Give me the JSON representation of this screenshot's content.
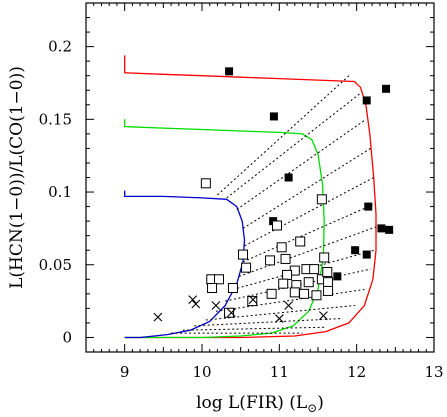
{
  "chart_data": {
    "type": "scatter",
    "xlabel": "log L(FIR) (L",
    "xlabel_sub": "⊙",
    "xlabel_close": ")",
    "ylabel": "L(HCN(1−0))/L(CO(1−0))",
    "xlim": [
      8.5,
      13
    ],
    "ylim": [
      -0.01,
      0.23
    ],
    "x_ticks": [
      9,
      10,
      11,
      12,
      13
    ],
    "x_tick_labels": [
      "9",
      "10",
      "11",
      "12",
      "13"
    ],
    "y_ticks": [
      0,
      0.05,
      0.1,
      0.15,
      0.2
    ],
    "y_tick_labels": [
      "0",
      "0.05",
      "0.1",
      "0.15",
      "0.2"
    ],
    "grid": false,
    "colors": {
      "red": "#ff0000",
      "green": "#00dd00",
      "blue": "#0000cc",
      "black": "#000000"
    },
    "curves": [
      {
        "color": "red",
        "points": [
          [
            9.0,
            0.194
          ],
          [
            9.0,
            0.182
          ],
          [
            9.5,
            0.181
          ],
          [
            10.0,
            0.18
          ],
          [
            10.5,
            0.179
          ],
          [
            11.0,
            0.178
          ],
          [
            11.5,
            0.177
          ],
          [
            11.97,
            0.176
          ],
          [
            12.05,
            0.172
          ],
          [
            12.12,
            0.16
          ],
          [
            12.17,
            0.14
          ],
          [
            12.22,
            0.11
          ],
          [
            12.25,
            0.085
          ],
          [
            12.25,
            0.06
          ],
          [
            12.21,
            0.04
          ],
          [
            12.1,
            0.022
          ],
          [
            11.9,
            0.01
          ],
          [
            11.6,
            0.004
          ],
          [
            11.2,
            0.001
          ],
          [
            10.5,
            0.0
          ],
          [
            9.5,
            0.0
          ],
          [
            9.0,
            0.0
          ]
        ]
      },
      {
        "color": "green",
        "points": [
          [
            9.0,
            0.15
          ],
          [
            9.0,
            0.145
          ],
          [
            9.5,
            0.144
          ],
          [
            10.0,
            0.143
          ],
          [
            10.5,
            0.142
          ],
          [
            11.0,
            0.141
          ],
          [
            11.3,
            0.14
          ],
          [
            11.42,
            0.136
          ],
          [
            11.5,
            0.126
          ],
          [
            11.56,
            0.105
          ],
          [
            11.58,
            0.08
          ],
          [
            11.57,
            0.055
          ],
          [
            11.5,
            0.033
          ],
          [
            11.38,
            0.018
          ],
          [
            11.18,
            0.008
          ],
          [
            10.9,
            0.003
          ],
          [
            10.5,
            0.001
          ],
          [
            10.0,
            0.0
          ],
          [
            9.0,
            0.0
          ]
        ]
      },
      {
        "color": "blue",
        "points": [
          [
            9.0,
            0.101
          ],
          [
            9.0,
            0.097
          ],
          [
            9.5,
            0.097
          ],
          [
            10.0,
            0.096
          ],
          [
            10.32,
            0.095
          ],
          [
            10.45,
            0.09
          ],
          [
            10.52,
            0.08
          ],
          [
            10.55,
            0.067
          ],
          [
            10.53,
            0.052
          ],
          [
            10.45,
            0.037
          ],
          [
            10.3,
            0.022
          ],
          [
            10.1,
            0.011
          ],
          [
            9.85,
            0.005
          ],
          [
            9.55,
            0.002
          ],
          [
            9.2,
            0.0
          ],
          [
            9.0,
            0.0
          ]
        ]
      }
    ],
    "dotted_lines": [
      [
        [
          10.2,
          0.098
        ],
        [
          11.9,
          0.18
        ]
      ],
      [
        [
          10.32,
          0.096
        ],
        [
          12.05,
          0.168
        ]
      ],
      [
        [
          10.45,
          0.088
        ],
        [
          12.12,
          0.15
        ]
      ],
      [
        [
          10.53,
          0.075
        ],
        [
          12.18,
          0.13
        ]
      ],
      [
        [
          10.55,
          0.063
        ],
        [
          12.22,
          0.11
        ]
      ],
      [
        [
          10.53,
          0.052
        ],
        [
          12.24,
          0.092
        ]
      ],
      [
        [
          10.48,
          0.042
        ],
        [
          12.25,
          0.076
        ]
      ],
      [
        [
          10.4,
          0.033
        ],
        [
          12.23,
          0.06
        ]
      ],
      [
        [
          10.3,
          0.025
        ],
        [
          12.18,
          0.047
        ]
      ],
      [
        [
          10.18,
          0.018
        ],
        [
          12.1,
          0.033
        ]
      ],
      [
        [
          10.05,
          0.012
        ],
        [
          11.98,
          0.022
        ]
      ],
      [
        [
          9.9,
          0.008
        ],
        [
          11.8,
          0.013
        ]
      ],
      [
        [
          9.75,
          0.005
        ],
        [
          11.58,
          0.007
        ]
      ],
      [
        [
          9.6,
          0.003
        ],
        [
          11.3,
          0.003
        ]
      ]
    ],
    "series": [
      {
        "marker": "filled_square",
        "points": [
          [
            10.35,
            0.183
          ],
          [
            10.93,
            0.152
          ],
          [
            11.12,
            0.11
          ],
          [
            10.92,
            0.08
          ],
          [
            12.13,
            0.163
          ],
          [
            12.38,
            0.171
          ],
          [
            12.15,
            0.09
          ],
          [
            12.32,
            0.075
          ],
          [
            12.42,
            0.074
          ],
          [
            11.98,
            0.06
          ],
          [
            12.13,
            0.057
          ],
          [
            11.75,
            0.042
          ]
        ]
      },
      {
        "marker": "open_square",
        "points": [
          [
            10.05,
            0.106
          ],
          [
            10.53,
            0.057
          ],
          [
            11.55,
            0.095
          ],
          [
            10.97,
            0.077
          ],
          [
            10.57,
            0.048
          ],
          [
            11.03,
            0.062
          ],
          [
            11.27,
            0.066
          ],
          [
            10.88,
            0.053
          ],
          [
            11.08,
            0.054
          ],
          [
            11.58,
            0.055
          ],
          [
            11.2,
            0.046
          ],
          [
            11.35,
            0.047
          ],
          [
            11.1,
            0.043
          ],
          [
            11.22,
            0.036
          ],
          [
            11.45,
            0.047
          ],
          [
            11.55,
            0.04
          ],
          [
            11.38,
            0.038
          ],
          [
            11.62,
            0.045
          ],
          [
            11.63,
            0.038
          ],
          [
            10.12,
            0.04
          ],
          [
            10.22,
            0.04
          ],
          [
            10.13,
            0.034
          ],
          [
            10.4,
            0.034
          ],
          [
            10.65,
            0.025
          ],
          [
            10.9,
            0.03
          ],
          [
            11.2,
            0.031
          ],
          [
            11.05,
            0.037
          ],
          [
            11.32,
            0.03
          ],
          [
            11.48,
            0.029
          ],
          [
            11.63,
            0.032
          ],
          [
            10.35,
            0.017
          ]
        ]
      },
      {
        "marker": "cross",
        "points": [
          [
            9.43,
            0.014
          ],
          [
            9.88,
            0.026
          ],
          [
            9.92,
            0.023
          ],
          [
            10.18,
            0.022
          ],
          [
            10.38,
            0.017
          ],
          [
            10.66,
            0.026
          ],
          [
            11.0,
            0.013
          ],
          [
            11.12,
            0.022
          ],
          [
            11.57,
            0.015
          ]
        ]
      }
    ]
  }
}
